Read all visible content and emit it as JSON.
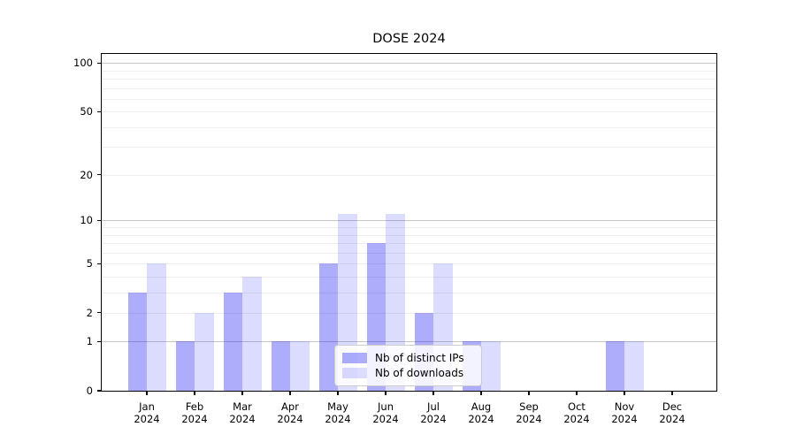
{
  "chart_data": {
    "type": "bar",
    "title": "DOSE 2024",
    "categories": [
      "Jan",
      "Feb",
      "Mar",
      "Apr",
      "May",
      "Jun",
      "Jul",
      "Aug",
      "Sep",
      "Oct",
      "Nov",
      "Dec"
    ],
    "category_year": "2024",
    "series": [
      {
        "name": "Nb of distinct IPs",
        "values": [
          3,
          1,
          3,
          1,
          5,
          7,
          2,
          1,
          0,
          0,
          1,
          0
        ],
        "color": "rgba(20,20,245,0.35)"
      },
      {
        "name": "Nb of downloads",
        "values": [
          5,
          2,
          4,
          1,
          11,
          11,
          5,
          1,
          0,
          0,
          1,
          0
        ],
        "color": "rgba(20,20,245,0.15)"
      }
    ],
    "xlabel": "",
    "ylabel": "",
    "yscale": "log1p",
    "ylim": [
      0,
      114
    ],
    "ytick_labels": [
      0,
      1,
      2,
      5,
      10,
      20,
      50,
      100
    ],
    "major_gridlines": [
      1,
      10,
      100
    ],
    "minor_gridlines": [
      2,
      3,
      4,
      5,
      6,
      7,
      8,
      9,
      20,
      30,
      40,
      50,
      60,
      70,
      80,
      90
    ],
    "grid": true,
    "legend_position": "lower center",
    "legend_entries": [
      "Nb of distinct IPs",
      "Nb of downloads"
    ]
  },
  "colors": {
    "background": "#ffffff",
    "spine": "#000000",
    "major_grid": "#c6c6c6",
    "minor_grid": "#efefef",
    "text": "#000000",
    "legend_border": "#cccccc"
  }
}
